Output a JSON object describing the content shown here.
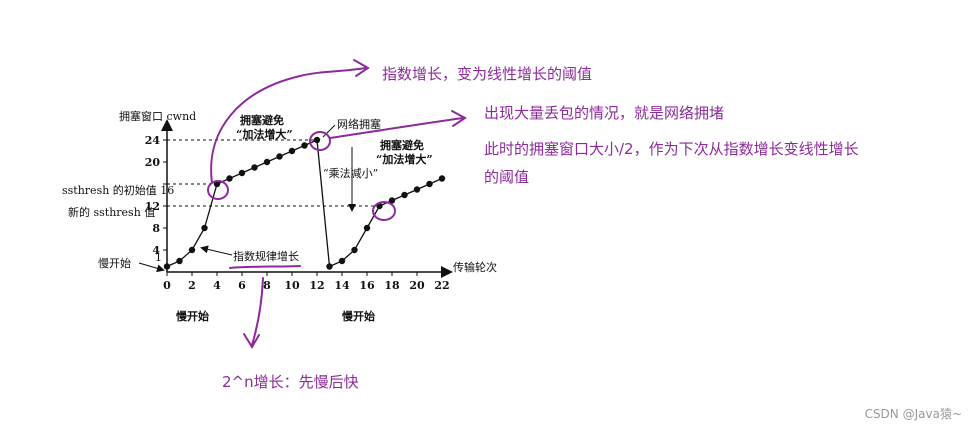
{
  "chart_data": {
    "type": "line",
    "ylabel": "拥塞窗口 cwnd",
    "xlabel": "传输轮次",
    "xlim": [
      0,
      22
    ],
    "ylim": [
      0,
      24
    ],
    "x_ticks": [
      0,
      2,
      4,
      6,
      8,
      10,
      12,
      14,
      16,
      18,
      20,
      22
    ],
    "y_ticks": [
      4,
      8,
      12,
      16,
      20,
      24
    ],
    "y_special_labels": {
      "initial_ssthresh": "ssthresh 的初始值 16",
      "new_ssthresh": "新的 ssthresh 值",
      "slow_start_1": "1",
      "slow_start_label": "慢开始"
    },
    "series": [
      {
        "x": [
          0,
          1,
          2,
          3,
          4,
          5,
          6,
          7,
          8,
          9,
          10,
          11,
          12,
          13,
          14,
          15,
          16,
          17,
          18,
          19,
          20,
          21,
          22
        ],
        "values": [
          1,
          2,
          4,
          8,
          16,
          17,
          18,
          19,
          20,
          21,
          22,
          23,
          24,
          1,
          2,
          4,
          8,
          12,
          13,
          14,
          15,
          16,
          17
        ]
      }
    ],
    "annotations": {
      "slow_start_bottom_1": "慢开始",
      "slow_start_bottom_2": "慢开始",
      "exp_growth": "指数规律增长",
      "avoid_1_line1": "拥塞避免",
      "avoid_1_line2": "“加法增大”",
      "avoid_2_line1": "拥塞避免",
      "avoid_2_line2": "“加法增大”",
      "congestion": "网络拥塞",
      "mult_decrease": "“乘法减小”"
    },
    "handwritten_notes": {
      "note_top": "指数增长，变为线性增长的阈值",
      "note_right_1": "出现大量丢包的情况，就是网络拥堵",
      "note_right_2": "此时的拥塞窗口大小/2，作为下次从指数增长变线性增长",
      "note_right_3": "的阈值",
      "note_bottom": "2^n增长：先慢后快"
    },
    "watermark": "CSDN @Java猿~",
    "grid": false,
    "colors": {
      "ink": "#111111",
      "annotation": "#8e2b9c"
    }
  }
}
